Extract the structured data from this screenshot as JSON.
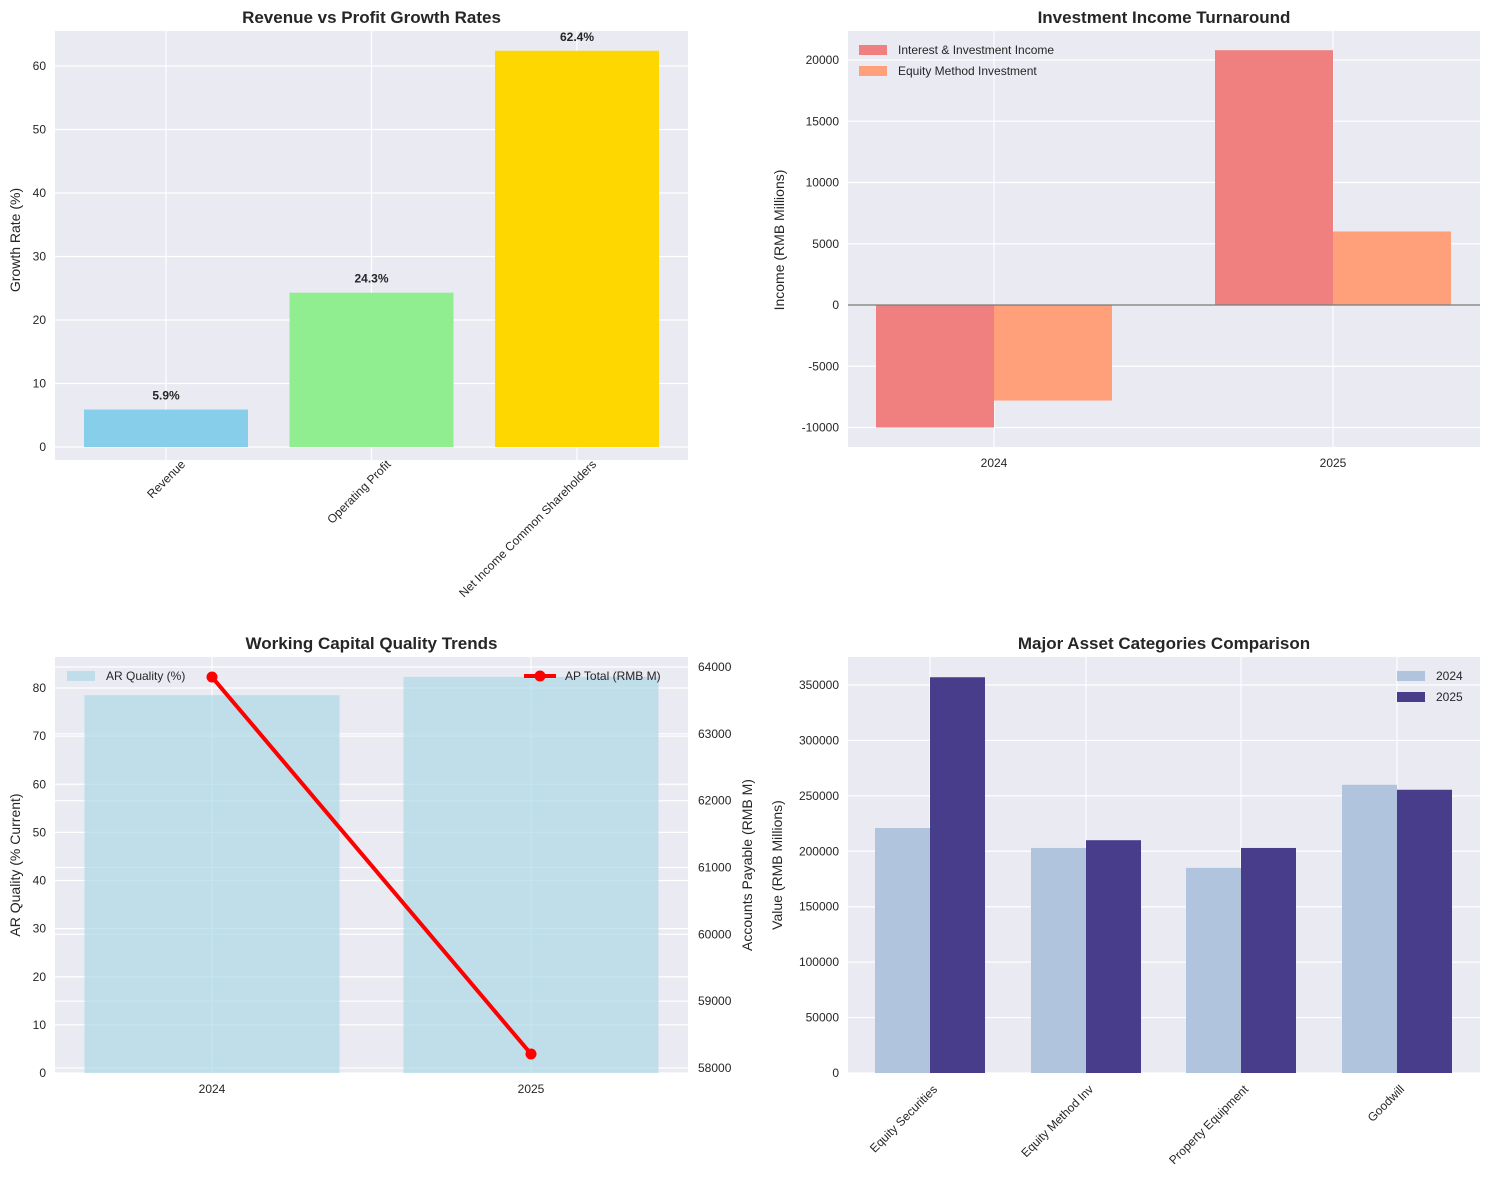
{
  "chart_data": [
    {
      "id": "growth",
      "type": "bar",
      "title": "Revenue vs Profit Growth Rates",
      "xlabel": "",
      "ylabel": "Growth Rate (%)",
      "categories": [
        "Revenue",
        "Operating Profit",
        "Net Income Common Shareholders"
      ],
      "values": [
        5.9,
        24.3,
        62.4
      ],
      "data_labels": [
        "5.9%",
        "24.3%",
        "62.4%"
      ],
      "colors": [
        "#87CEEB",
        "#90EE90",
        "#FFD700"
      ],
      "ylim": [
        0,
        65.5
      ],
      "yticks": [
        0,
        10,
        20,
        30,
        40,
        50,
        60
      ],
      "grid": true,
      "xtick_rotation": 45
    },
    {
      "id": "investment",
      "type": "bar",
      "title": "Investment Income Turnaround",
      "xlabel": "",
      "ylabel": "Income (RMB Millions)",
      "categories": [
        "2024",
        "2025"
      ],
      "series": [
        {
          "name": "Interest & Investment Income",
          "values": [
            -10000,
            20800
          ],
          "color": "#F08080"
        },
        {
          "name": "Equity Method Investment",
          "values": [
            -7800,
            6000
          ],
          "color": "#FFA07A"
        }
      ],
      "ylim": [
        -11500,
        22200
      ],
      "yticks": [
        -10000,
        -5000,
        0,
        5000,
        10000,
        15000,
        20000
      ],
      "zero_line": true,
      "legend_position": "top-left",
      "grid": true
    },
    {
      "id": "working_capital",
      "type": "bar",
      "title": "Working Capital Quality Trends",
      "xlabel": "",
      "categories": [
        "2024",
        "2025"
      ],
      "left_axis": {
        "label": "AR Quality (% Current)",
        "label_color": "#0000FF",
        "ylim": [
          0,
          86.4
        ],
        "yticks": [
          0,
          10,
          20,
          30,
          40,
          50,
          60,
          70,
          80
        ]
      },
      "right_axis": {
        "label": "Accounts Payable (RMB M)",
        "label_color": "#FF0000",
        "ylim": [
          57920,
          64150
        ],
        "yticks": [
          58000,
          59000,
          60000,
          61000,
          62000,
          63000,
          64000
        ]
      },
      "series": [
        {
          "name": "AR Quality (%)",
          "type": "bar",
          "axis": "left",
          "values": [
            78.5,
            82.3
          ],
          "color": "#ADD8E6"
        },
        {
          "name": "AP Total (RMB M)",
          "type": "line",
          "axis": "right",
          "values": [
            63850,
            58210
          ],
          "color": "#FF0000"
        }
      ],
      "legend_left": "top-left",
      "legend_right": "top-right",
      "grid": true
    },
    {
      "id": "assets",
      "type": "bar",
      "title": "Major Asset Categories Comparison",
      "xlabel": "",
      "ylabel": "Value (RMB Millions)",
      "categories": [
        "Equity Securities",
        "Equity Method Inv",
        "Property Equipment",
        "Goodwill"
      ],
      "series": [
        {
          "name": "2024",
          "values": [
            221000,
            203000,
            185000,
            260000
          ],
          "color": "#B0C4DE"
        },
        {
          "name": "2025",
          "values": [
            357000,
            210000,
            203000,
            255500
          ],
          "color": "#483D8B"
        }
      ],
      "ylim": [
        0,
        375000
      ],
      "yticks": [
        0,
        50000,
        100000,
        150000,
        200000,
        250000,
        300000,
        350000
      ],
      "legend_position": "top-right",
      "grid": true,
      "xtick_rotation": 45
    }
  ]
}
